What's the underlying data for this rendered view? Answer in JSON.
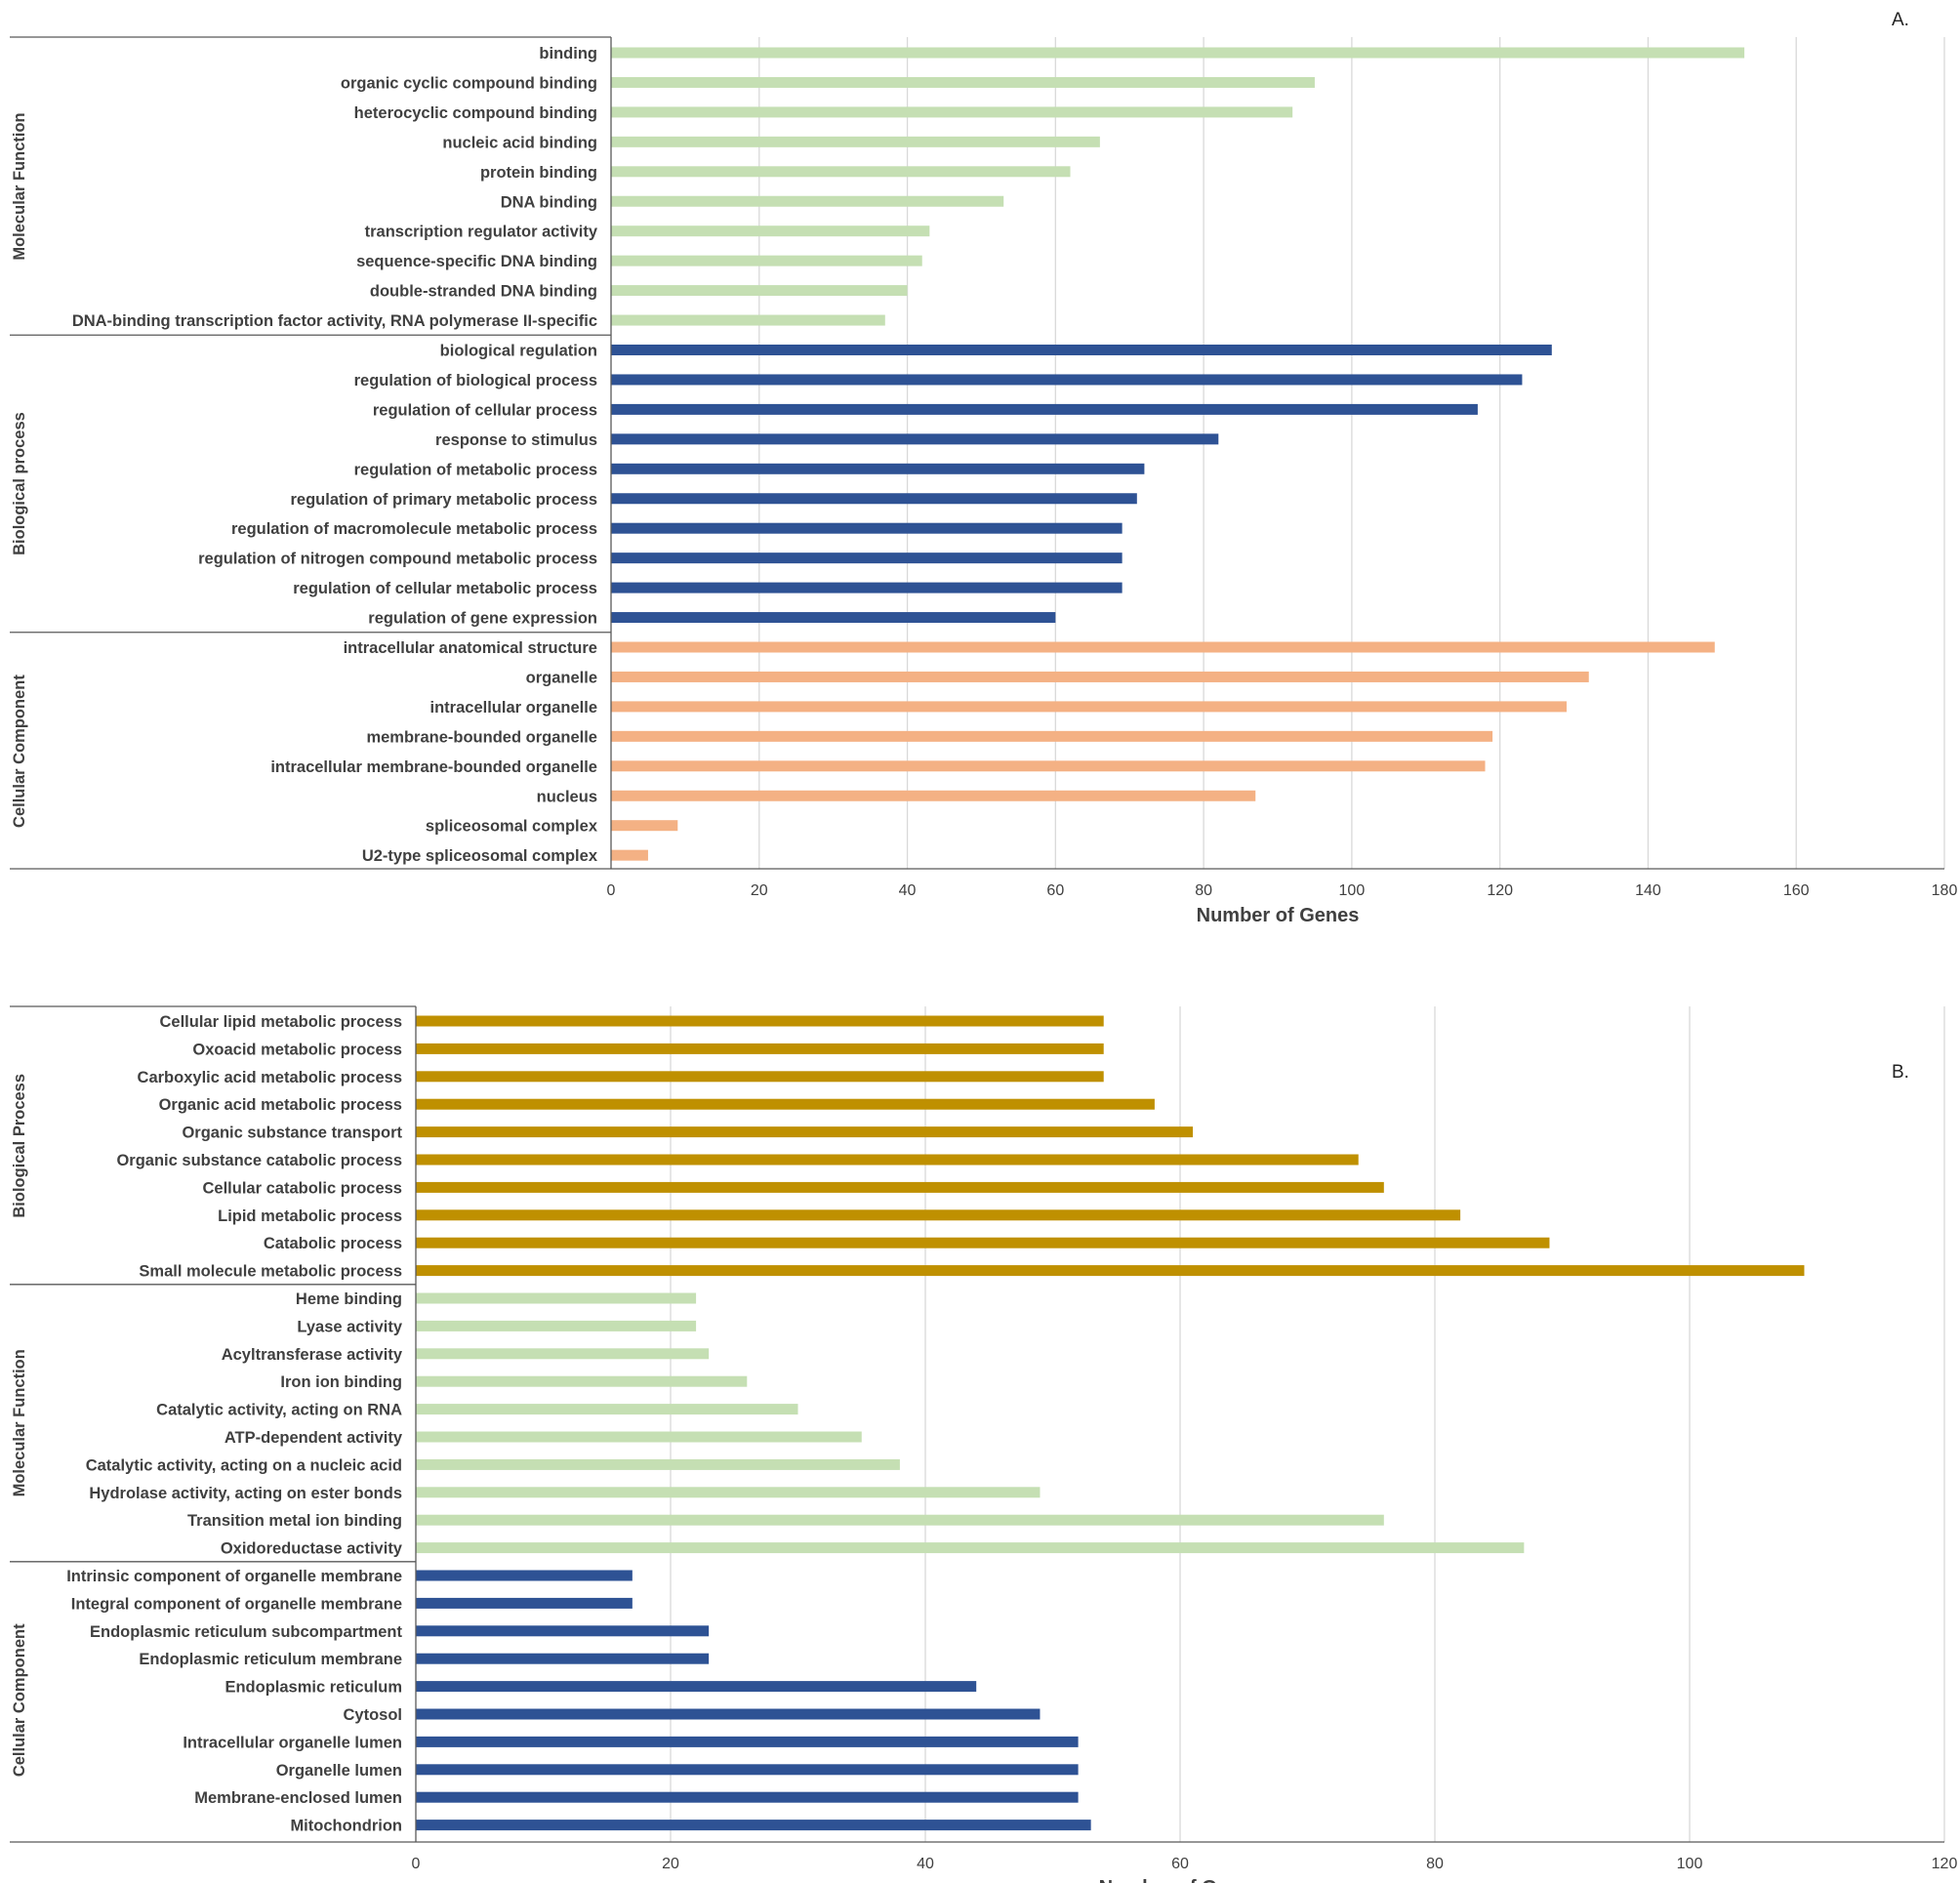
{
  "chart_data": [
    {
      "type": "bar",
      "orientation": "horizontal",
      "panel_label": "A.",
      "xlabel": "Number of Genes",
      "xlim": [
        0,
        180
      ],
      "xticks": [
        0,
        20,
        40,
        60,
        80,
        100,
        120,
        140,
        160,
        180
      ],
      "grid": true,
      "groups": [
        {
          "name": "Molecular Function",
          "color": "#c5dfb3",
          "categories": [
            "binding",
            "organic cyclic compound binding",
            "heterocyclic compound binding",
            "nucleic acid binding",
            "protein binding",
            "DNA binding",
            "transcription regulator activity",
            "sequence-specific DNA binding",
            "double-stranded DNA binding",
            "DNA-binding transcription factor activity, RNA polymerase II-specific"
          ],
          "values": [
            153,
            95,
            92,
            66,
            62,
            53,
            43,
            42,
            40,
            37
          ]
        },
        {
          "name": "Biological process",
          "color": "#2e5294",
          "categories": [
            "biological regulation",
            "regulation of biological process",
            "regulation of cellular process",
            "response to stimulus",
            "regulation of metabolic process",
            "regulation of primary metabolic process",
            "regulation of macromolecule metabolic process",
            "regulation of nitrogen compound metabolic process",
            "regulation of cellular metabolic process",
            "regulation of gene expression"
          ],
          "values": [
            127,
            123,
            117,
            82,
            72,
            71,
            69,
            69,
            69,
            60
          ]
        },
        {
          "name": "Cellular Component",
          "color": "#f4b184",
          "categories": [
            "intracellular anatomical structure",
            "organelle",
            "intracellular organelle",
            "membrane-bounded organelle",
            "intracellular membrane-bounded organelle",
            "nucleus",
            "spliceosomal complex",
            "U2-type spliceosomal complex"
          ],
          "values": [
            149,
            132,
            129,
            119,
            118,
            87,
            9,
            5
          ]
        }
      ]
    },
    {
      "type": "bar",
      "orientation": "horizontal",
      "panel_label": "B.",
      "xlabel": "Number of Genes",
      "xlim": [
        0,
        120
      ],
      "xticks": [
        0,
        20,
        40,
        60,
        80,
        100,
        120
      ],
      "grid": true,
      "groups": [
        {
          "name": "Biological Process",
          "color": "#bf9000",
          "categories": [
            "Cellular lipid metabolic process",
            "Oxoacid metabolic process",
            "Carboxylic acid metabolic process",
            "Organic acid metabolic process",
            "Organic substance transport",
            "Organic substance catabolic process",
            "Cellular catabolic process",
            "Lipid metabolic process",
            "Catabolic process",
            "Small molecule metabolic process"
          ],
          "values": [
            54,
            54,
            54,
            58,
            61,
            74,
            76,
            82,
            89,
            109
          ]
        },
        {
          "name": "Molecular Function",
          "color": "#c5dfb3",
          "categories": [
            "Heme binding",
            "Lyase activity",
            "Acyltransferase activity",
            "Iron ion binding",
            "Catalytic activity, acting on RNA",
            "ATP-dependent activity",
            "Catalytic activity, acting on a nucleic acid",
            "Hydrolase activity, acting on ester bonds",
            "Transition metal ion binding",
            "Oxidoreductase activity"
          ],
          "values": [
            22,
            22,
            23,
            26,
            30,
            35,
            38,
            49,
            76,
            87
          ]
        },
        {
          "name": "Cellular Component",
          "color": "#2e5294",
          "categories": [
            "Intrinsic component of organelle membrane",
            "Integral component of organelle membrane",
            "Endoplasmic reticulum subcompartment",
            "Endoplasmic reticulum membrane",
            "Endoplasmic reticulum",
            "Cytosol",
            "Intracellular organelle lumen",
            "Organelle lumen",
            "Membrane-enclosed lumen",
            "Mitochondrion"
          ],
          "values": [
            17,
            17,
            23,
            23,
            44,
            49,
            52,
            52,
            52,
            53
          ]
        }
      ]
    }
  ]
}
